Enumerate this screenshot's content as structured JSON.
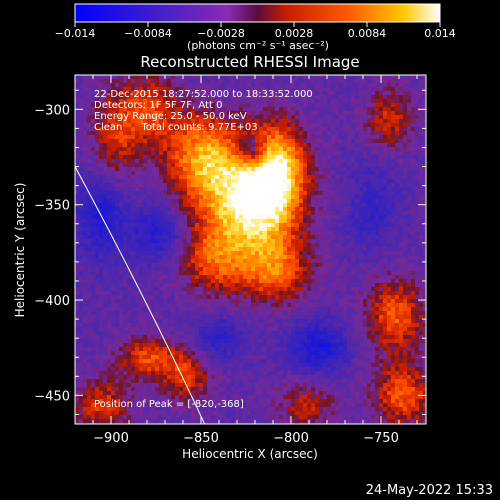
{
  "chart_data": {
    "type": "heatmap",
    "title": "Reconstructed RHESSI Image",
    "xlabel": "Heliocentric X (arcsec)",
    "ylabel": "Heliocentric Y (arcsec)",
    "xlim": [
      -920,
      -725
    ],
    "ylim": [
      -465,
      -282
    ],
    "xticks": [
      -900,
      -850,
      -800,
      -750
    ],
    "yticks": [
      -300,
      -350,
      -400,
      -450
    ],
    "xtick_labels": [
      "−900",
      "−850",
      "−800",
      "−750"
    ],
    "ytick_labels": [
      "−300",
      "−350",
      "−400",
      "−450"
    ],
    "colorbar": {
      "range": [
        -0.014,
        0.014
      ],
      "ticks": [
        "−0.014",
        "−0.0084",
        "−0.0028",
        "0.0028",
        "0.0084",
        "0.014"
      ],
      "tick_values": [
        -0.014,
        -0.0084,
        -0.0028,
        0.0028,
        0.0084,
        0.014
      ],
      "label": "(photons cm⁻² s⁻¹ asec⁻²)",
      "colors": [
        "#0000ff",
        "#5a17b8",
        "#8a38b8",
        "#c82a00",
        "#ff4400",
        "#ffaa00",
        "#ffffff"
      ]
    },
    "annotations": [
      "22-Dec-2015 18:27:52.000 to 18:33:52.000",
      "Detectors: 1F 5F 7F, Att 0",
      "Energy Range: 25.0 - 50.0 keV",
      "Clean      Total counts: 9.77E+03"
    ],
    "peak_label": "Position of Peak = [-820,-368]",
    "peak": [
      -820,
      -368
    ],
    "sources": [
      {
        "x": -825,
        "y": -350,
        "amp": 1.0,
        "sx": 18,
        "sy": 22
      },
      {
        "x": -808,
        "y": -333,
        "amp": 0.85,
        "sx": 12,
        "sy": 18
      },
      {
        "x": -850,
        "y": -325,
        "amp": 0.7,
        "sx": 14,
        "sy": 16
      },
      {
        "x": -808,
        "y": -385,
        "amp": 0.55,
        "sx": 14,
        "sy": 12
      },
      {
        "x": -845,
        "y": -380,
        "amp": 0.45,
        "sx": 12,
        "sy": 12
      },
      {
        "x": -878,
        "y": -300,
        "amp": 0.5,
        "sx": 12,
        "sy": 14
      },
      {
        "x": -898,
        "y": -315,
        "amp": 0.45,
        "sx": 10,
        "sy": 18
      },
      {
        "x": -880,
        "y": -430,
        "amp": 0.55,
        "sx": 12,
        "sy": 8
      },
      {
        "x": -858,
        "y": -440,
        "amp": 0.5,
        "sx": 10,
        "sy": 10
      },
      {
        "x": -905,
        "y": -455,
        "amp": 0.5,
        "sx": 12,
        "sy": 10
      },
      {
        "x": -742,
        "y": -408,
        "amp": 0.6,
        "sx": 12,
        "sy": 14
      },
      {
        "x": -738,
        "y": -450,
        "amp": 0.6,
        "sx": 12,
        "sy": 12
      },
      {
        "x": -792,
        "y": -455,
        "amp": 0.4,
        "sx": 12,
        "sy": 10
      },
      {
        "x": -745,
        "y": -305,
        "amp": 0.45,
        "sx": 10,
        "sy": 12
      },
      {
        "x": -760,
        "y": -345,
        "amp": 0.35,
        "sx": 10,
        "sy": 10
      },
      {
        "x": -822,
        "y": -322,
        "amp": -0.6,
        "sx": 6,
        "sy": 6
      },
      {
        "x": -757,
        "y": -348,
        "amp": -0.6,
        "sx": 10,
        "sy": 14
      },
      {
        "x": -785,
        "y": -425,
        "amp": -0.55,
        "sx": 12,
        "sy": 10
      },
      {
        "x": -905,
        "y": -355,
        "amp": -0.5,
        "sx": 10,
        "sy": 16
      },
      {
        "x": -875,
        "y": -365,
        "amp": -0.45,
        "sx": 10,
        "sy": 10
      },
      {
        "x": -840,
        "y": -420,
        "amp": -0.4,
        "sx": 10,
        "sy": 8
      }
    ],
    "limb_curve": [
      [
        -920,
        -330
      ],
      [
        -880,
        -400
      ],
      [
        -848,
        -465
      ]
    ]
  },
  "footer": {
    "timestamp": "24-May-2022 15:33"
  }
}
